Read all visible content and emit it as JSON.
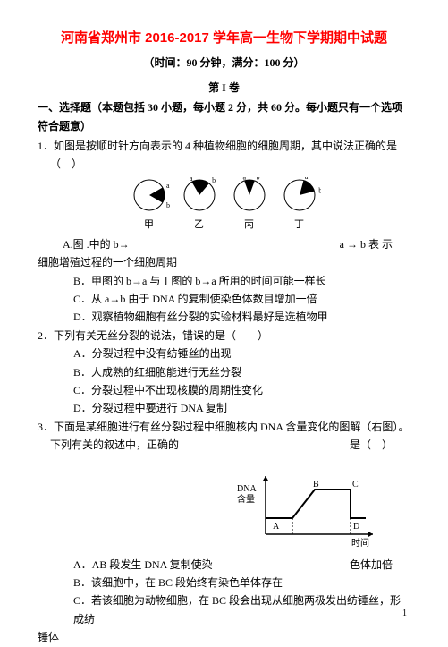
{
  "title": "河南省郑州市 2016-2017 学年高一生物下学期期中试题",
  "subtitle": "（时间：90 分钟，满分：100 分）",
  "juan_label": "第 I 卷",
  "section1_head": "一、选择题（本题包括 30 小题，每小题 2 分，共 60 分。每小题只有一个选项符合题意）",
  "q1_line1": "1．如图是按顺时针方向表示的 4 种植物细胞的细胞周期，其中说法正确的是",
  "q1_paren": "（　）",
  "pie_labels": [
    "甲",
    "乙",
    "丙",
    "丁"
  ],
  "pies": [
    {
      "start": 60,
      "sweep": 60
    },
    {
      "start": 330,
      "sweep": 70
    },
    {
      "start": 340,
      "sweep": 40
    },
    {
      "start": 15,
      "sweep": 60
    }
  ],
  "q1_split_left": "A.图 .中的 b→",
  "q1_split_right": "a → b 表 示",
  "q1_extra": "细胞增殖过程的一个细胞周期",
  "q1_B": "B．甲图的 b→a 与丁图的 b→a 所用的时间可能一样长",
  "q1_C": "C．从 a→b 由于 DNA 的复制使染色体数目增加一倍",
  "q1_D": "D．观察植物细胞有丝分裂的实验材料最好是选植物甲",
  "q2_head": "2．下列有关无丝分裂的说法，错误的是（　　）",
  "q2_A": "A．分裂过程中没有纺锤丝的出现",
  "q2_B": "B．人成熟的红细胞能进行无丝分裂",
  "q2_C": "C．分裂过程中不出现核膜的周期性变化",
  "q2_D": "D．分裂过程中要进行 DNA 复制",
  "q3_line1": "3．下面是某细胞进行有丝分裂过程中细胞核内 DNA 含量变化的图解（右图）。",
  "q3_split_left": "下列有关的叙述中，正确的",
  "q3_split_right": "是（　）",
  "chart": {
    "ylabel_top": "DNA",
    "ylabel_bot": "含量",
    "xlabel": "时间",
    "letters": [
      "A",
      "B",
      "C",
      "D"
    ],
    "line_color": "#000000",
    "bg": "#ffffff"
  },
  "q3_A_left": "A．AB 段发生 DNA 复制使染",
  "q3_A_right": "色体加倍",
  "q3_B": "B．该细胞中，在 BC 段始终有染色单体存在",
  "q3_C": "C．若该细胞为动物细胞，在 BC 段会出现从细胞两极发出纺锤丝，形成纺",
  "q3_C2": "锤体",
  "page_number": "1",
  "colors": {
    "title": "#ff0000",
    "text": "#000000"
  }
}
